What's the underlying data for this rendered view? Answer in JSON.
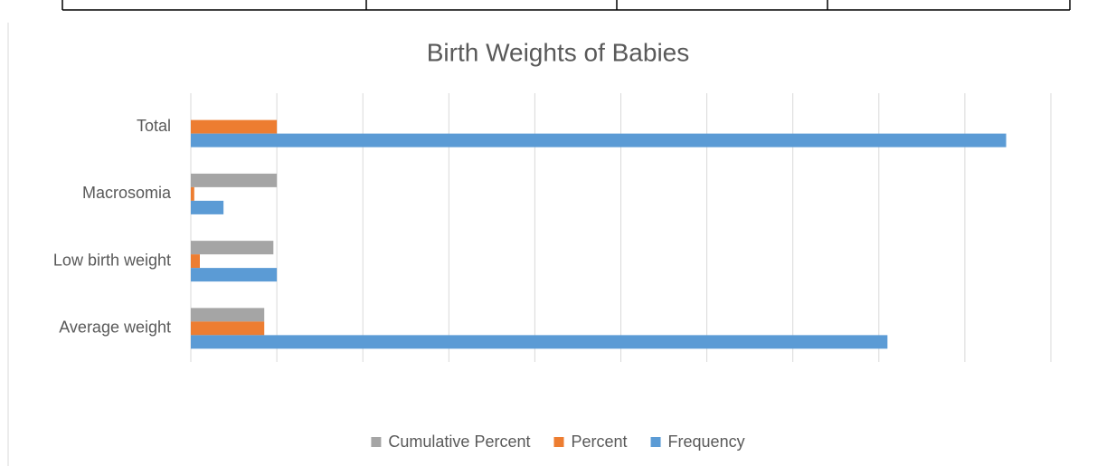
{
  "chart_data": {
    "type": "bar",
    "orientation": "horizontal",
    "title": "Birth Weights of Babies",
    "categories": [
      "Average weight",
      "Low birth weight",
      "Macrosomia",
      "Total"
    ],
    "series": [
      {
        "name": "Cumulative Percent",
        "color": "#a5a5a5",
        "values": [
          85.4,
          96,
          100,
          null
        ]
      },
      {
        "name": "Percent",
        "color": "#ed7d31",
        "values": [
          85.4,
          10.5,
          4.0,
          100
        ]
      },
      {
        "name": "Frequency",
        "color": "#5b9bd5",
        "values": [
          810,
          100,
          38,
          948
        ]
      }
    ],
    "xlim": [
      0,
      1000
    ],
    "xticks": [
      0,
      100,
      200,
      300,
      400,
      500,
      600,
      700,
      800,
      900,
      1000
    ],
    "grid": true,
    "legend": "bottom"
  }
}
